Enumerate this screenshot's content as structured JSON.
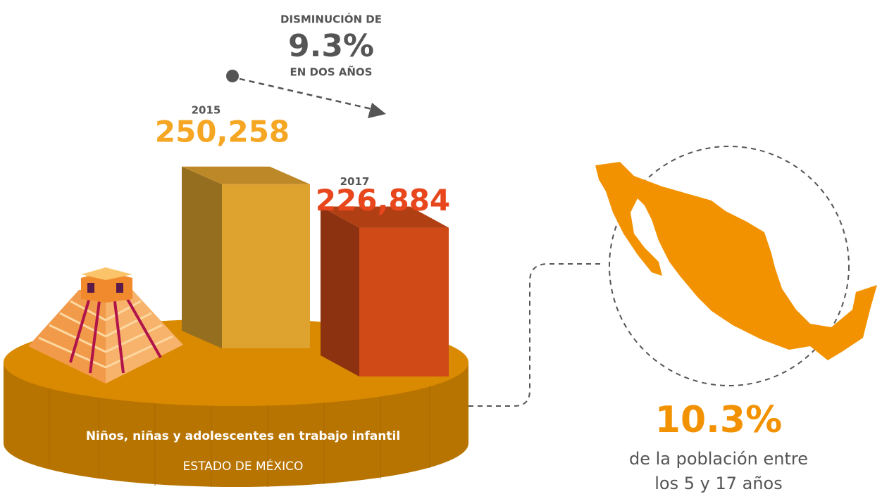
{
  "chart_data": {
    "type": "bar",
    "title": "Niños, niñas y adolescentes en trabajo infantil",
    "subtitle": "ESTADO DE MÉXICO",
    "categories": [
      "2015",
      "2017"
    ],
    "values": [
      250258,
      226884
    ],
    "value_labels": [
      "250,258",
      "226,884"
    ],
    "colors": [
      "#dea22f",
      "#d04a18"
    ],
    "label_colors": [
      "#f5a623",
      "#e8461c"
    ],
    "change": {
      "label_top": "DISMINUCIÓN DE",
      "value_label": "9.3%",
      "label_bottom": "EN DOS AÑOS"
    },
    "national": {
      "value_label": "10.3%",
      "text": [
        "de la población entre",
        "los 5 y 17 años"
      ]
    }
  }
}
